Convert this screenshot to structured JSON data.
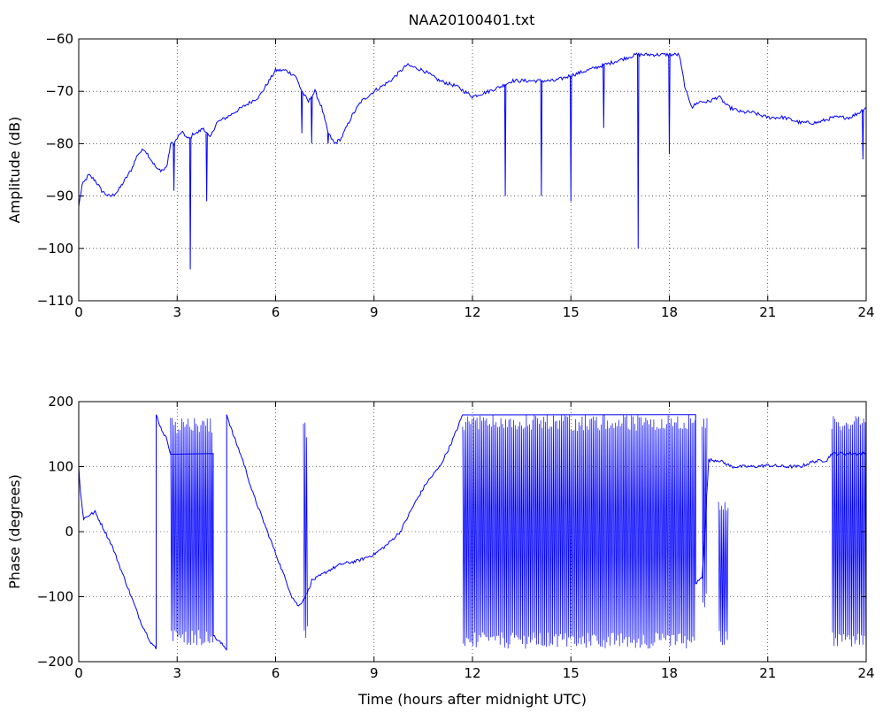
{
  "figure": {
    "title": "NAA20100401.txt",
    "line_color": "#0000ff"
  },
  "chart_data": [
    {
      "type": "line",
      "title": "NAA20100401.txt",
      "xlabel": "",
      "ylabel": "Amplitude (dB)",
      "xlim": [
        0,
        24
      ],
      "ylim": [
        -110,
        -60
      ],
      "xticks": [
        0,
        3,
        6,
        9,
        12,
        15,
        18,
        21,
        24
      ],
      "yticks": [
        -110,
        -100,
        -90,
        -80,
        -70,
        -60
      ],
      "ytick_labels": [
        "−110",
        "−100",
        "−90",
        "−80",
        "−70",
        "−60"
      ],
      "grid": true,
      "series": [
        {
          "x": [
            0,
            0.1,
            0.3,
            0.5,
            0.7,
            0.9,
            1.0,
            1.2,
            1.4,
            1.6,
            1.8,
            2.0,
            2.2,
            2.4,
            2.6,
            2.7,
            2.8,
            2.9,
            3.0,
            3.1,
            3.2,
            3.3,
            3.4,
            3.5,
            3.6,
            3.8,
            4.0,
            4.2,
            4.5,
            5.0,
            5.5,
            5.8,
            6.0,
            6.3,
            6.6,
            6.8,
            7.0,
            7.2,
            7.4,
            7.6,
            7.8,
            8.0,
            8.3,
            8.6,
            9.0,
            9.5,
            10.0,
            10.5,
            11.0,
            11.5,
            12.0,
            12.5,
            12.9,
            13.2,
            13.6,
            14.0,
            14.5,
            15.0,
            15.5,
            16.0,
            16.5,
            17.0,
            17.5,
            18.0,
            18.3,
            18.5,
            18.7,
            18.9,
            19.2,
            19.5,
            19.8,
            20.2,
            20.5,
            21.0,
            21.5,
            22.0,
            22.5,
            23.0,
            23.5,
            23.8,
            24.0
          ],
          "values": [
            -92,
            -88,
            -86,
            -87,
            -89,
            -90,
            -90,
            -89,
            -87,
            -85,
            -82,
            -81,
            -83,
            -85,
            -85,
            -84,
            -80,
            -80,
            -79,
            -78,
            -78,
            -79,
            -79,
            -78,
            -78,
            -77,
            -79,
            -76,
            -75,
            -73,
            -71,
            -68,
            -66,
            -66,
            -67,
            -70,
            -72,
            -70,
            -73,
            -78,
            -80,
            -79,
            -75,
            -72,
            -70,
            -68,
            -65,
            -66,
            -68,
            -69,
            -71,
            -70,
            -69,
            -68,
            -68,
            -68,
            -68,
            -67,
            -66,
            -65,
            -64,
            -63,
            -63,
            -63,
            -63,
            -70,
            -73,
            -72,
            -72,
            -71,
            -73,
            -74,
            -74,
            -75,
            -75,
            -76,
            -76,
            -75,
            -75,
            -74,
            -73
          ]
        }
      ],
      "dropouts": [
        {
          "x": 2.9,
          "to": -89
        },
        {
          "x": 3.4,
          "to": -104
        },
        {
          "x": 3.9,
          "to": -91
        },
        {
          "x": 6.8,
          "to": -78
        },
        {
          "x": 7.1,
          "to": -80
        },
        {
          "x": 7.6,
          "to": -80
        },
        {
          "x": 13.0,
          "to": -90
        },
        {
          "x": 14.1,
          "to": -90
        },
        {
          "x": 15.0,
          "to": -91
        },
        {
          "x": 16.0,
          "to": -77
        },
        {
          "x": 17.05,
          "to": -100
        },
        {
          "x": 18.0,
          "to": -82
        },
        {
          "x": 23.9,
          "to": -83
        }
      ]
    },
    {
      "type": "line",
      "title": "",
      "xlabel": "Time (hours after midnight UTC)",
      "ylabel": "Phase (degrees)",
      "xlim": [
        0,
        24
      ],
      "ylim": [
        -200,
        200
      ],
      "xticks": [
        0,
        3,
        6,
        9,
        12,
        15,
        18,
        21,
        24
      ],
      "yticks": [
        -200,
        -100,
        0,
        100,
        200
      ],
      "ytick_labels": [
        "−200",
        "−100",
        "0",
        "100",
        "200"
      ],
      "grid": true,
      "series": [
        {
          "x": [
            0,
            0.05,
            0.15,
            0.3,
            0.5,
            0.7,
            1.0,
            1.3,
            1.6,
            1.9,
            2.2,
            2.35,
            2.36,
            2.5,
            2.7,
            2.8,
            4.1,
            4.3,
            4.5,
            4.51,
            4.7,
            5.0,
            5.3,
            5.6,
            5.9,
            6.2,
            6.5,
            6.7,
            6.9,
            7.0,
            7.1,
            7.3,
            7.6,
            8.0,
            8.5,
            9.0,
            9.4,
            9.8,
            10.2,
            10.6,
            11.0,
            11.3,
            11.55,
            11.7,
            18.8,
            19.0,
            19.2,
            19.5,
            19.7,
            19.9,
            20.2,
            20.6,
            21.0,
            21.5,
            22.0,
            22.4,
            22.8,
            22.95,
            24.0
          ],
          "values": [
            100,
            60,
            20,
            25,
            30,
            10,
            -20,
            -60,
            -100,
            -140,
            -170,
            -180,
            180,
            160,
            140,
            120,
            -160,
            -170,
            -180,
            180,
            150,
            110,
            60,
            20,
            -20,
            -60,
            -100,
            -115,
            -100,
            -90,
            -75,
            -70,
            -60,
            -50,
            -45,
            -35,
            -20,
            0,
            40,
            75,
            100,
            130,
            160,
            180,
            -80,
            -70,
            110,
            110,
            105,
            100,
            100,
            100,
            102,
            100,
            100,
            108,
            110,
            120,
            120
          ]
        }
      ],
      "wrap_bands": [
        {
          "from": 2.8,
          "to": 4.1,
          "low": -175,
          "high": 175
        },
        {
          "from": 6.85,
          "to": 6.98,
          "low": -170,
          "high": 170
        },
        {
          "from": 11.7,
          "to": 18.8,
          "low": -180,
          "high": 180
        },
        {
          "from": 19.0,
          "to": 19.15,
          "low": -120,
          "high": 180
        },
        {
          "from": 19.5,
          "to": 19.8,
          "low": -175,
          "high": 50
        },
        {
          "from": 22.95,
          "to": 24.0,
          "low": -180,
          "high": 180
        }
      ]
    }
  ]
}
